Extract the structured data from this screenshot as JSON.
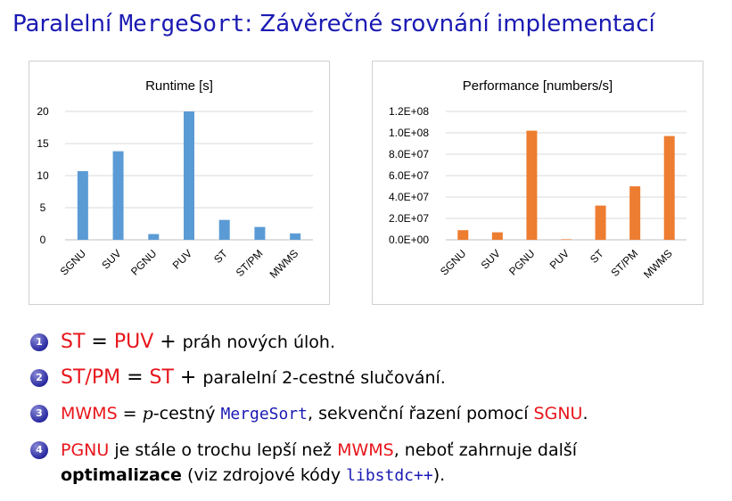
{
  "title": {
    "pre": "Paralelní ",
    "code": "MergeSort",
    "post": ": Závěrečné srovnání implementací"
  },
  "colors": {
    "title": "#1a1ab3",
    "runtime_bar": "#5b9bd5",
    "performance_bar": "#ed7d31",
    "highlight": "#e8151b"
  },
  "chart_data": [
    {
      "type": "bar",
      "title": "Runtime [s]",
      "categories": [
        "SGNU",
        "SUV",
        "PGNU",
        "PUV",
        "ST",
        "ST/PM",
        "MWMS"
      ],
      "values": [
        10.7,
        13.8,
        0.9,
        20.0,
        3.1,
        2.0,
        1.0
      ],
      "ylim": [
        0,
        20
      ],
      "yticks": [
        "0",
        "5",
        "10",
        "15",
        "20"
      ],
      "yticks_values": [
        0,
        5,
        10,
        15,
        20
      ],
      "grid": true,
      "color": "#5b9bd5"
    },
    {
      "type": "bar",
      "title": "Performance [numbers/s]",
      "categories": [
        "SGNU",
        "SUV",
        "PGNU",
        "PUV",
        "ST",
        "ST/PM",
        "MWMS"
      ],
      "values": [
        9000000,
        7000000,
        102000000,
        500000,
        32000000,
        50000000,
        97000000
      ],
      "ylim": [
        0,
        120000000
      ],
      "yticks": [
        "0.0E+00",
        "2.0E+07",
        "4.0E+07",
        "6.0E+07",
        "8.0E+07",
        "1.0E+08",
        "1.2E+08"
      ],
      "yticks_values": [
        0,
        20000000,
        40000000,
        60000000,
        80000000,
        100000000,
        120000000
      ],
      "grid": true,
      "color": "#ed7d31"
    }
  ],
  "items": [
    {
      "n": "1",
      "a": "ST",
      "eq": " = ",
      "b": "PUV",
      "plus": " + ",
      "rest": "práh nových úloh."
    },
    {
      "n": "2",
      "a": "ST/PM",
      "eq": " = ",
      "b": "ST",
      "plus": " + ",
      "rest": "paralelní 2-cestné slučování."
    },
    {
      "n": "3",
      "a": "MWMS",
      "eq": " = ",
      "p": "p",
      "t1": "-cestný ",
      "code": "MergeSort",
      "t2": ", sekvenční řazení pomocí ",
      "c": "SGNU",
      "t3": "."
    },
    {
      "n": "4",
      "a": "PGNU",
      "t1": " je stále o trochu lepší než ",
      "c": "MWMS",
      "t2": ", neboť zahrnuje další",
      "bold": "optimalizace",
      "t3": " (viz zdrojové kódy ",
      "code": "libstdc++",
      "t4": ")."
    }
  ]
}
